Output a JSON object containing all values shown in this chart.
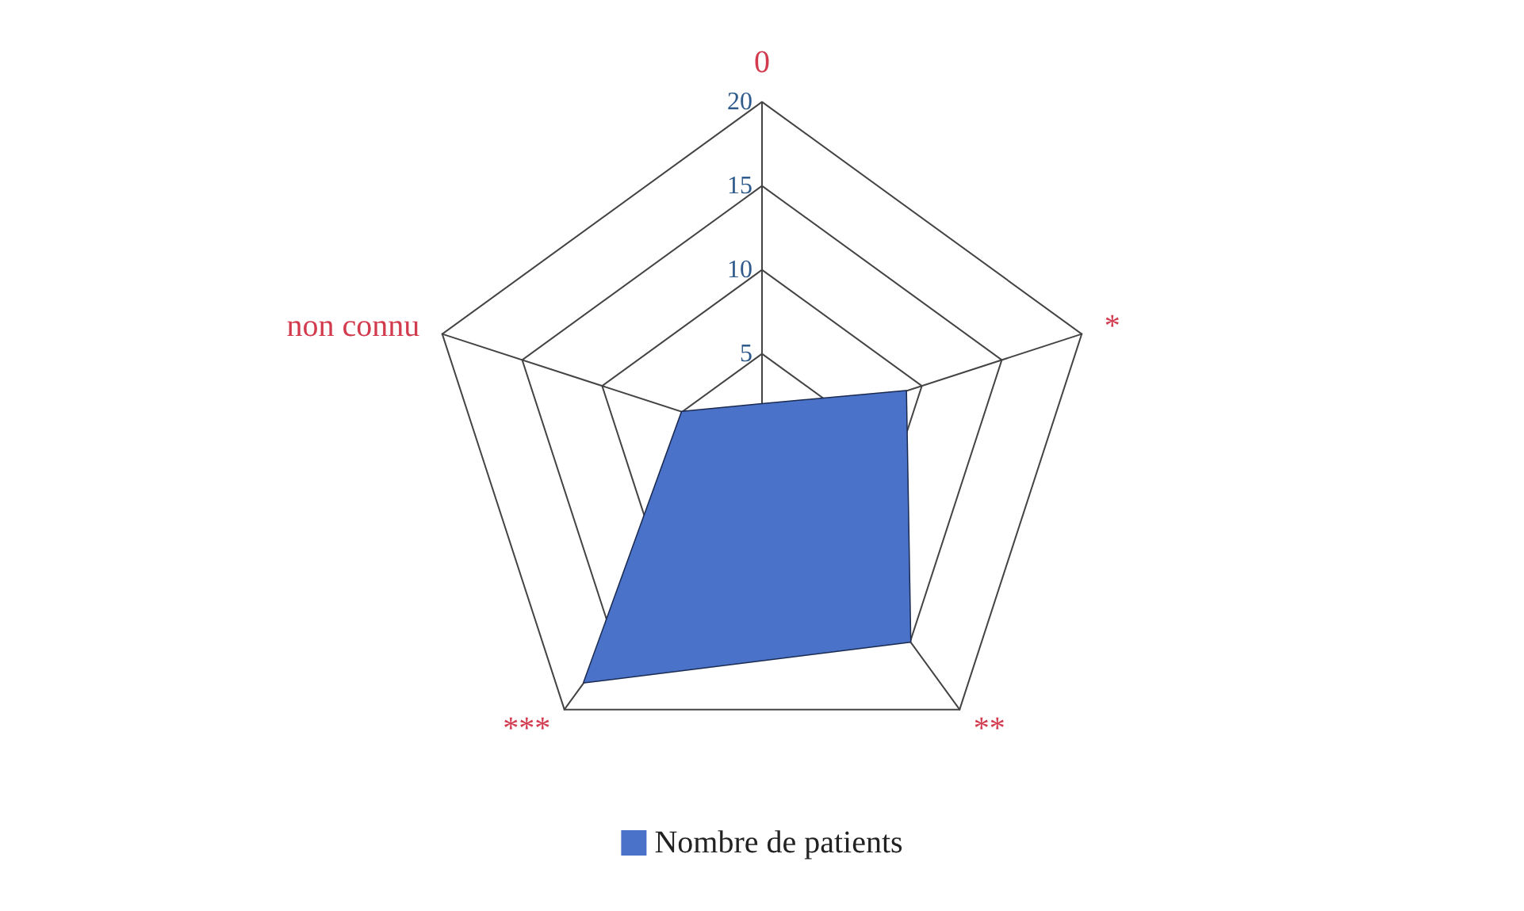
{
  "chart_data": {
    "type": "radar",
    "categories": [
      "0",
      "*",
      "**",
      "***",
      "non connu"
    ],
    "series": [
      {
        "name": "Nombre de patients",
        "color": "#4a72c8",
        "values": [
          2,
          9,
          15,
          18,
          5
        ]
      }
    ],
    "ylim": [
      0,
      20
    ],
    "yticks": [
      5,
      10,
      15,
      20
    ],
    "legend": "bottom",
    "grid": true
  }
}
